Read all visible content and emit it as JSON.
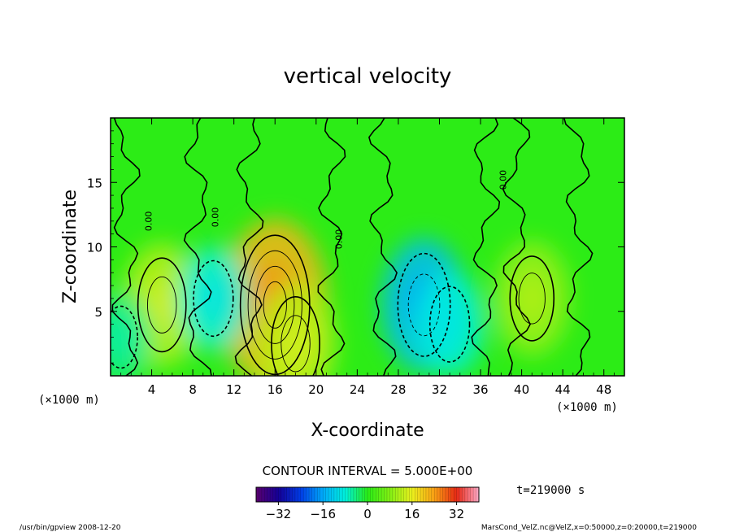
{
  "chart_data": {
    "type": "heatmap",
    "title": "vertical velocity",
    "xlabel": "X-coordinate",
    "ylabel": "Z-coordinate",
    "x_unit": "(×1000 m)",
    "y_unit": "(×1000 m)",
    "xlim": [
      0,
      50
    ],
    "ylim": [
      0,
      20
    ],
    "x_ticks": [
      "4",
      "8",
      "12",
      "16",
      "20",
      "24",
      "28",
      "32",
      "36",
      "40",
      "44",
      "48"
    ],
    "y_ticks": [
      "5",
      "10",
      "15"
    ],
    "contour_interval_label": "CONTOUR INTERVAL = 5.000E+00",
    "contour_zero_label": "0.00",
    "time_label": "t=219000 s",
    "colorbar": {
      "range": [
        -40,
        40
      ],
      "ticks": [
        "−32",
        "−16",
        "0",
        "16",
        "32"
      ],
      "tick_values": [
        -32,
        -16,
        0,
        16,
        32
      ]
    },
    "features": [
      {
        "x": 16.0,
        "z": 5.5,
        "value": 22,
        "sign": "up"
      },
      {
        "x": 5.0,
        "z": 5.5,
        "value": 12,
        "sign": "up"
      },
      {
        "x": 18.0,
        "z": 2.5,
        "value": 12,
        "sign": "up"
      },
      {
        "x": 41.0,
        "z": 6.0,
        "value": 10,
        "sign": "up"
      },
      {
        "x": 30.5,
        "z": 5.5,
        "value": -14,
        "sign": "down"
      },
      {
        "x": 10.0,
        "z": 6.0,
        "value": -8,
        "sign": "down"
      },
      {
        "x": 1.0,
        "z": 3.0,
        "value": -5,
        "sign": "down"
      },
      {
        "x": 33.0,
        "z": 4.0,
        "value": -8,
        "sign": "down"
      }
    ]
  },
  "footer": {
    "left": "/usr/bin/gpview   2008-12-20",
    "right": "MarsCond_VelZ.nc@VelZ,x=0:50000,z=0:20000,t=219000"
  }
}
